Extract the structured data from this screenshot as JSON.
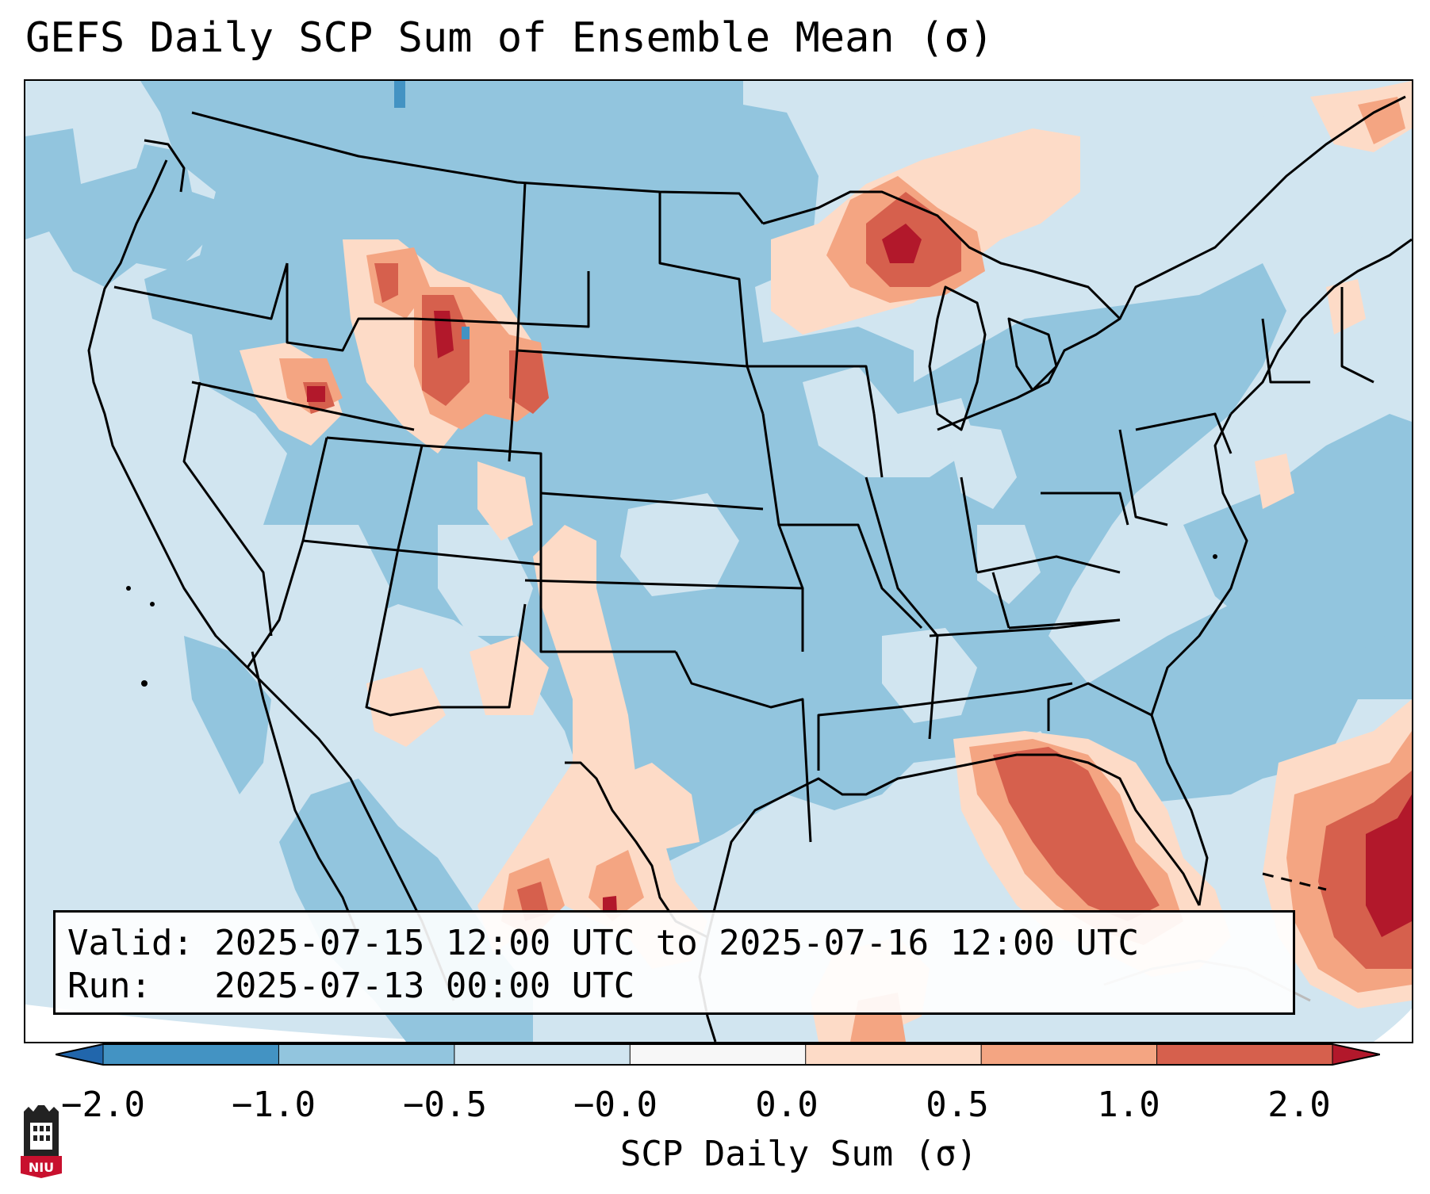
{
  "title": "GEFS Daily SCP Sum of Ensemble Mean (σ)",
  "info_box": {
    "valid_line": "Valid: 2025-07-15 12:00 UTC to 2025-07-16 12:00 UTC",
    "run_line": "Run:   2025-07-13 00:00 UTC"
  },
  "colorbar": {
    "label": "SCP Daily Sum (σ)",
    "ticks": [
      "−2.0",
      "−1.0",
      "−0.5",
      "−0.0",
      "0.0",
      "0.5",
      "1.0",
      "2.0"
    ],
    "bins": [
      {
        "range": "<-2.0",
        "color": "#2166ac"
      },
      {
        "range": "-2.0 to -1.0",
        "color": "#4393c3"
      },
      {
        "range": "-1.0 to -0.5",
        "color": "#92c5de"
      },
      {
        "range": "-0.5 to 0.0",
        "color": "#d1e5f0"
      },
      {
        "range": "0.0",
        "color": "#f7f7f7"
      },
      {
        "range": "0.0 to 0.5",
        "color": "#fddbc7"
      },
      {
        "range": "0.5 to 1.0",
        "color": "#f4a582"
      },
      {
        "range": "1.0 to 2.0",
        "color": "#d6604d"
      },
      {
        "range": ">2.0",
        "color": "#b2182b"
      }
    ]
  },
  "logo": {
    "text": "NIU",
    "primary_color": "#c8102e"
  },
  "colors": {
    "background_ocean": "#d1e5f0",
    "boundary_lines": "#000000"
  }
}
